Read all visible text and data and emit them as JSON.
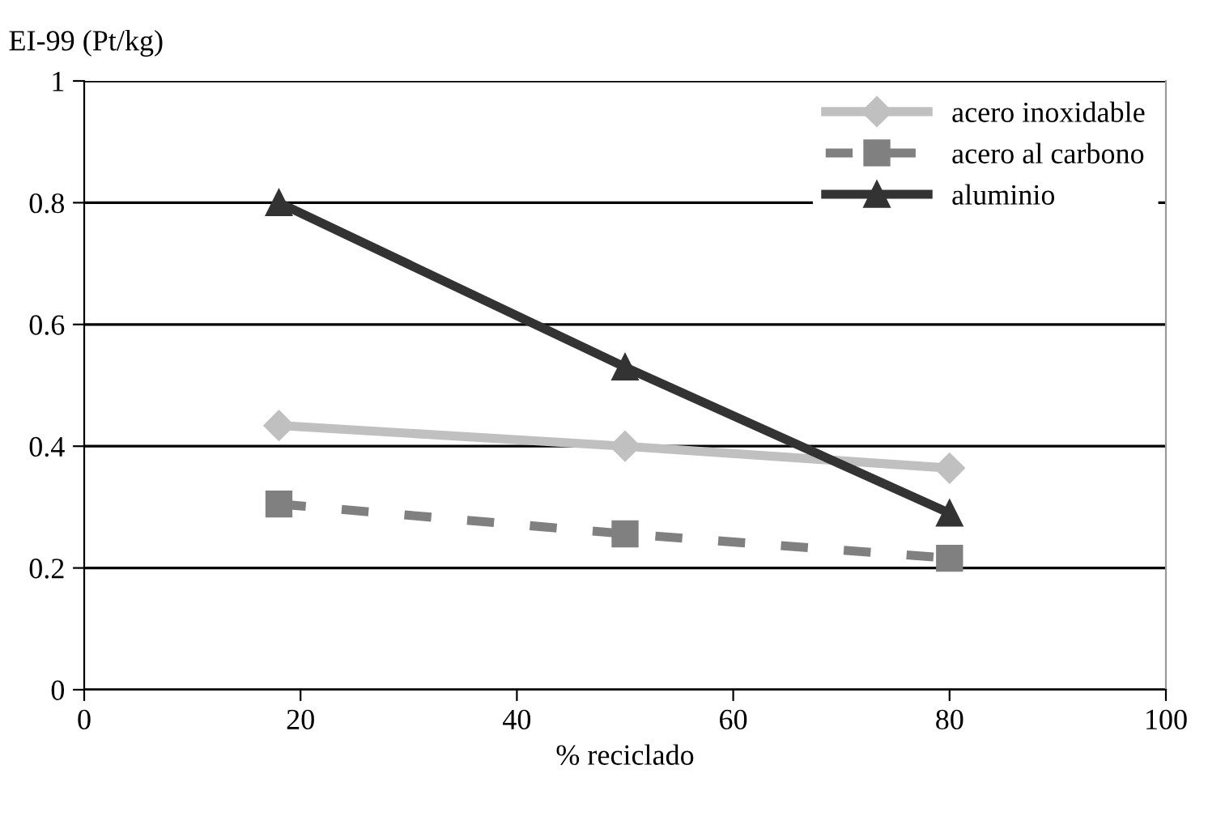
{
  "chart_data": {
    "type": "line",
    "ylabel": "EI-99 (Pt/kg)",
    "xlabel": "% reciclado",
    "x": [
      18,
      50,
      80
    ],
    "series": [
      {
        "name": "acero inoxidable",
        "color": "#c0c0c0",
        "values": [
          0.434,
          0.4,
          0.364
        ],
        "marker": "diamond",
        "line_style": "solid"
      },
      {
        "name": "acero al carbono",
        "color": "#808080",
        "values": [
          0.305,
          0.256,
          0.216
        ],
        "marker": "square",
        "line_style": "dashed"
      },
      {
        "name": "aluminio",
        "color": "#333333",
        "values": [
          0.8,
          0.53,
          0.29
        ],
        "marker": "triangle",
        "line_style": "solid"
      }
    ],
    "xlim": [
      0,
      100
    ],
    "xticks": [
      0,
      20,
      40,
      60,
      80,
      100
    ],
    "ylim": [
      0,
      1
    ],
    "yticks": [
      0,
      0.2,
      0.4,
      0.6,
      0.8,
      1
    ],
    "grid": "y",
    "legend": "top right"
  }
}
